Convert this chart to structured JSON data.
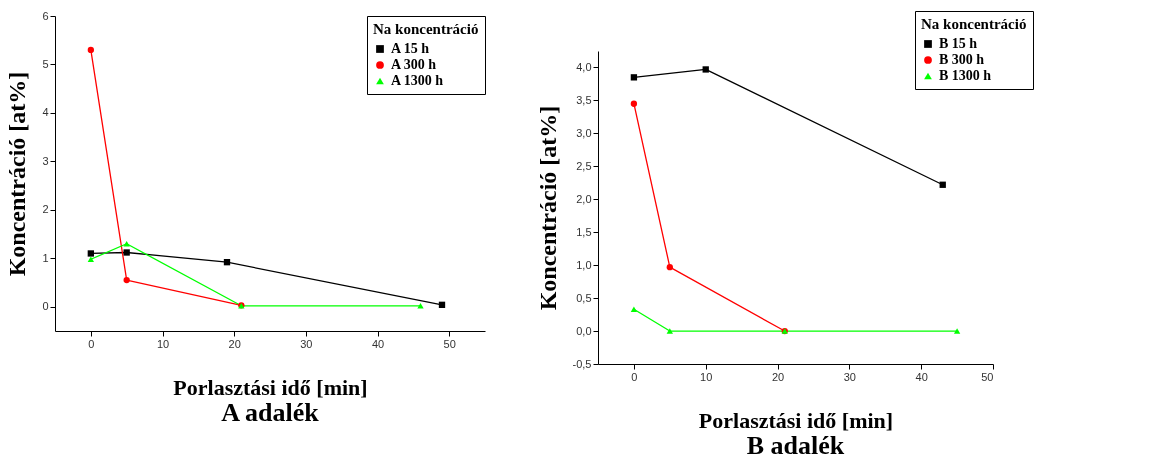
{
  "chart_data": [
    {
      "type": "line",
      "title": "A adalék",
      "xlabel": "Porlasztási idő [min]",
      "ylabel": "Koncentráció [at%]",
      "legend_title": "Na koncentráció",
      "legend": "top right",
      "xlim": [
        -5,
        55
      ],
      "xticks": [
        0,
        10,
        20,
        30,
        40,
        50
      ],
      "ylim": [
        -0.5,
        6
      ],
      "yticks": [
        0,
        1,
        2,
        3,
        4,
        5,
        6
      ],
      "grid": false,
      "series": [
        {
          "name": "A 15 h",
          "color": "#000000",
          "marker": "square",
          "x": [
            0,
            5,
            19,
            49
          ],
          "values": [
            1.1,
            1.12,
            0.92,
            0.04
          ]
        },
        {
          "name": "A 300 h",
          "color": "#ff0000",
          "marker": "circle",
          "x": [
            0,
            5,
            21
          ],
          "values": [
            5.3,
            0.55,
            0.03
          ]
        },
        {
          "name": "A 1300 h",
          "color": "#00ff00",
          "marker": "triangle",
          "x": [
            0,
            5,
            21,
            46
          ],
          "values": [
            0.98,
            1.3,
            0.02,
            0.02
          ]
        }
      ]
    },
    {
      "type": "line",
      "title": "B adalék",
      "xlabel": "Porlasztási idő [min]",
      "ylabel": "Koncentráció [at%]",
      "legend_title": "Na koncentráció",
      "legend": "top right",
      "xlim": [
        -5,
        50
      ],
      "xticks": [
        0,
        10,
        20,
        30,
        40,
        50
      ],
      "ylim": [
        -0.5,
        4.25
      ],
      "yticks": [
        {
          "value": -0.5,
          "label": "-0,5"
        },
        {
          "value": 0,
          "label": "0,0"
        },
        {
          "value": 0.5,
          "label": "0,5"
        },
        {
          "value": 1,
          "label": "1,0"
        },
        {
          "value": 1.5,
          "label": "1,5"
        },
        {
          "value": 2,
          "label": "2,0"
        },
        {
          "value": 2.5,
          "label": "2,5"
        },
        {
          "value": 3,
          "label": "3,0"
        },
        {
          "value": 3.5,
          "label": "3,5"
        },
        {
          "value": 4,
          "label": "4,0"
        }
      ],
      "grid": false,
      "series": [
        {
          "name": "B 15 h",
          "color": "#000000",
          "marker": "square",
          "x": [
            0,
            10,
            43
          ],
          "values": [
            3.85,
            3.97,
            2.22
          ]
        },
        {
          "name": "B 300 h",
          "color": "#ff0000",
          "marker": "circle",
          "x": [
            0,
            5,
            21
          ],
          "values": [
            3.45,
            0.97,
            0
          ]
        },
        {
          "name": "B 1300 h",
          "color": "#00ff00",
          "marker": "triangle",
          "x": [
            0,
            5,
            21,
            45
          ],
          "values": [
            0.33,
            0,
            0,
            0
          ]
        }
      ]
    }
  ]
}
